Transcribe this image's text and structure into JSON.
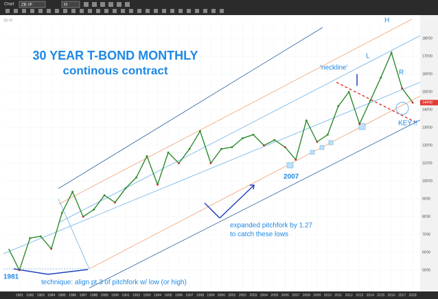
{
  "toolbar": {
    "window": "Chart",
    "symbol": "ZB #F",
    "interval": "M"
  },
  "chart_data": {
    "type": "line",
    "title": "30 YEAR T-BOND MONTHLY",
    "subtitle": "continous contract",
    "color": "#2a8a2a",
    "x": [
      1980,
      1981,
      1982,
      1983,
      1984,
      1985,
      1986,
      1987,
      1988,
      1989,
      1990,
      1991,
      1992,
      1993,
      1994,
      1995,
      1996,
      1997,
      1998,
      1999,
      2000,
      2001,
      2002,
      2003,
      2004,
      2005,
      2006,
      2007,
      2008,
      2009,
      2010,
      2011,
      2012,
      2013,
      2014,
      2015,
      2016,
      2017,
      2018
    ],
    "values": [
      62,
      50,
      68,
      69,
      62,
      82,
      94,
      80,
      84,
      92,
      88,
      96,
      102,
      114,
      98,
      116,
      110,
      118,
      128,
      110,
      118,
      119,
      124,
      126,
      120,
      123,
      119,
      112,
      134,
      122,
      126,
      142,
      150,
      132,
      145,
      158,
      172,
      152,
      144
    ],
    "xlim": [
      1979.5,
      2018.7
    ],
    "xticks": [
      1981,
      1982,
      1983,
      1984,
      1985,
      1986,
      1987,
      1988,
      1989,
      1990,
      1991,
      1992,
      1993,
      1994,
      1995,
      1996,
      1997,
      1998,
      1999,
      2000,
      2001,
      2002,
      2003,
      2004,
      2005,
      2006,
      2007,
      2008,
      2009,
      2010,
      2011,
      2012,
      2013,
      2014,
      2015,
      2016,
      2017,
      2018
    ],
    "ylim": [
      40,
      190
    ],
    "yticks": [
      {
        "value": 50,
        "label": "50'00"
      },
      {
        "value": 60,
        "label": "60'00"
      },
      {
        "value": 70,
        "label": "70'00"
      },
      {
        "value": 80,
        "label": "80'00"
      },
      {
        "value": 90,
        "label": "90'00"
      },
      {
        "value": 100,
        "label": "100'00"
      },
      {
        "value": 110,
        "label": "110'00"
      },
      {
        "value": 120,
        "label": "120'00"
      },
      {
        "value": 130,
        "label": "130'00"
      },
      {
        "value": 140,
        "label": "140'00"
      },
      {
        "value": 150,
        "label": "150'00"
      },
      {
        "value": 160,
        "label": "160'00"
      },
      {
        "value": 170,
        "label": "170'00"
      },
      {
        "value": 180,
        "label": "180'00"
      }
    ],
    "last_price": {
      "value": 144,
      "label": "144'00"
    },
    "annotations": [
      "'neckline'",
      "H",
      "L",
      "R",
      "KEY !!",
      "2007",
      "1981",
      "expanded pitchfork by 1.27",
      "to catch these lows",
      "technique: align pt 3 of pitchfork w/ low (or high)"
    ]
  }
}
